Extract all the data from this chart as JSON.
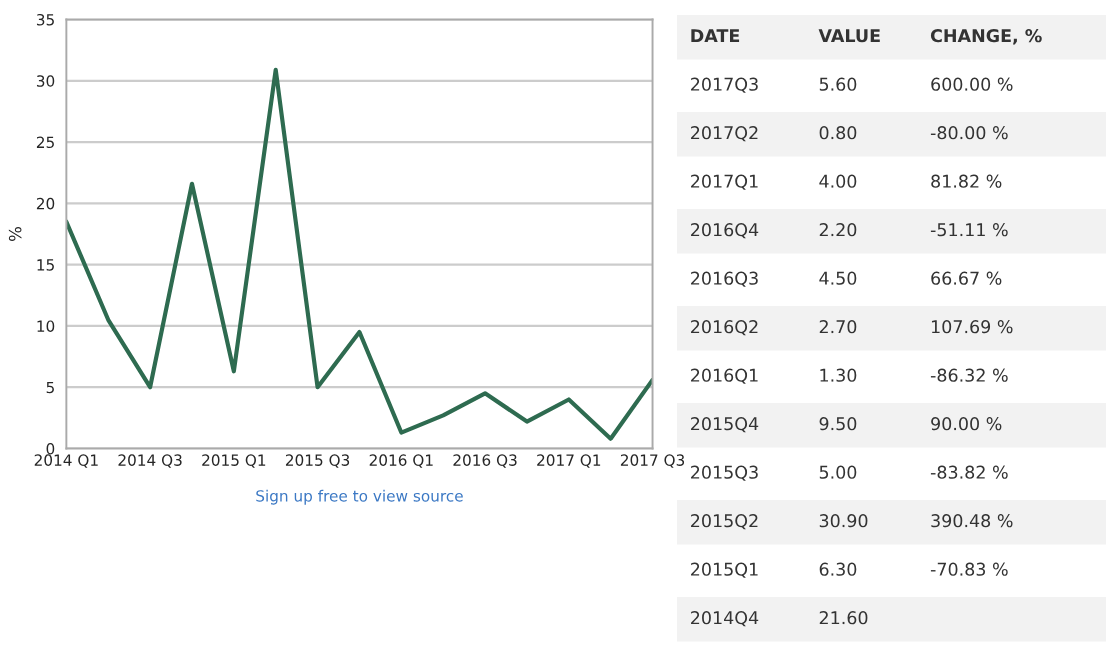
{
  "chart_data": [
    {
      "type": "line",
      "ylabel": "%",
      "categories": [
        "2014 Q1",
        null,
        "2014 Q3",
        null,
        "2015 Q1",
        null,
        "2015 Q3",
        null,
        "2016 Q1",
        null,
        "2016 Q3",
        null,
        "2017 Q1",
        null,
        "2017 Q3"
      ],
      "series": [
        {
          "color": "#2e6b50",
          "values": [
            18.5,
            10.5,
            5.0,
            21.6,
            6.3,
            30.9,
            5.0,
            9.5,
            1.3,
            2.7,
            4.5,
            2.2,
            4.0,
            0.8,
            5.6
          ]
        }
      ],
      "ylim": [
        0,
        35
      ],
      "yticks": [
        0,
        5,
        10,
        15,
        20,
        25,
        30,
        35
      ],
      "grid": "y",
      "legend": false,
      "annotations": [
        "Sign up free to view source"
      ]
    },
    {
      "type": "other",
      "categories": [
        "DATE",
        "VALUE",
        "CHANGE, %"
      ],
      "cell_labels": [
        [
          "2017Q3",
          "5.60",
          "600.00 %"
        ],
        [
          "2017Q2",
          "0.80",
          "-80.00 %"
        ],
        [
          "2017Q1",
          "4.00",
          "81.82 %"
        ],
        [
          "2016Q4",
          "2.20",
          "-51.11 %"
        ],
        [
          "2016Q3",
          "4.50",
          "66.67 %"
        ],
        [
          "2016Q2",
          "2.70",
          "107.69 %"
        ],
        [
          "2016Q1",
          "1.30",
          "-86.32 %"
        ],
        [
          "2015Q4",
          "9.50",
          "90.00 %"
        ],
        [
          "2015Q3",
          "5.00",
          "-83.82 %"
        ],
        [
          "2015Q2",
          "30.90",
          "390.48 %"
        ],
        [
          "2015Q1",
          "6.30",
          "-70.83 %"
        ],
        [
          "2014Q4",
          "21.60",
          null
        ]
      ]
    }
  ]
}
